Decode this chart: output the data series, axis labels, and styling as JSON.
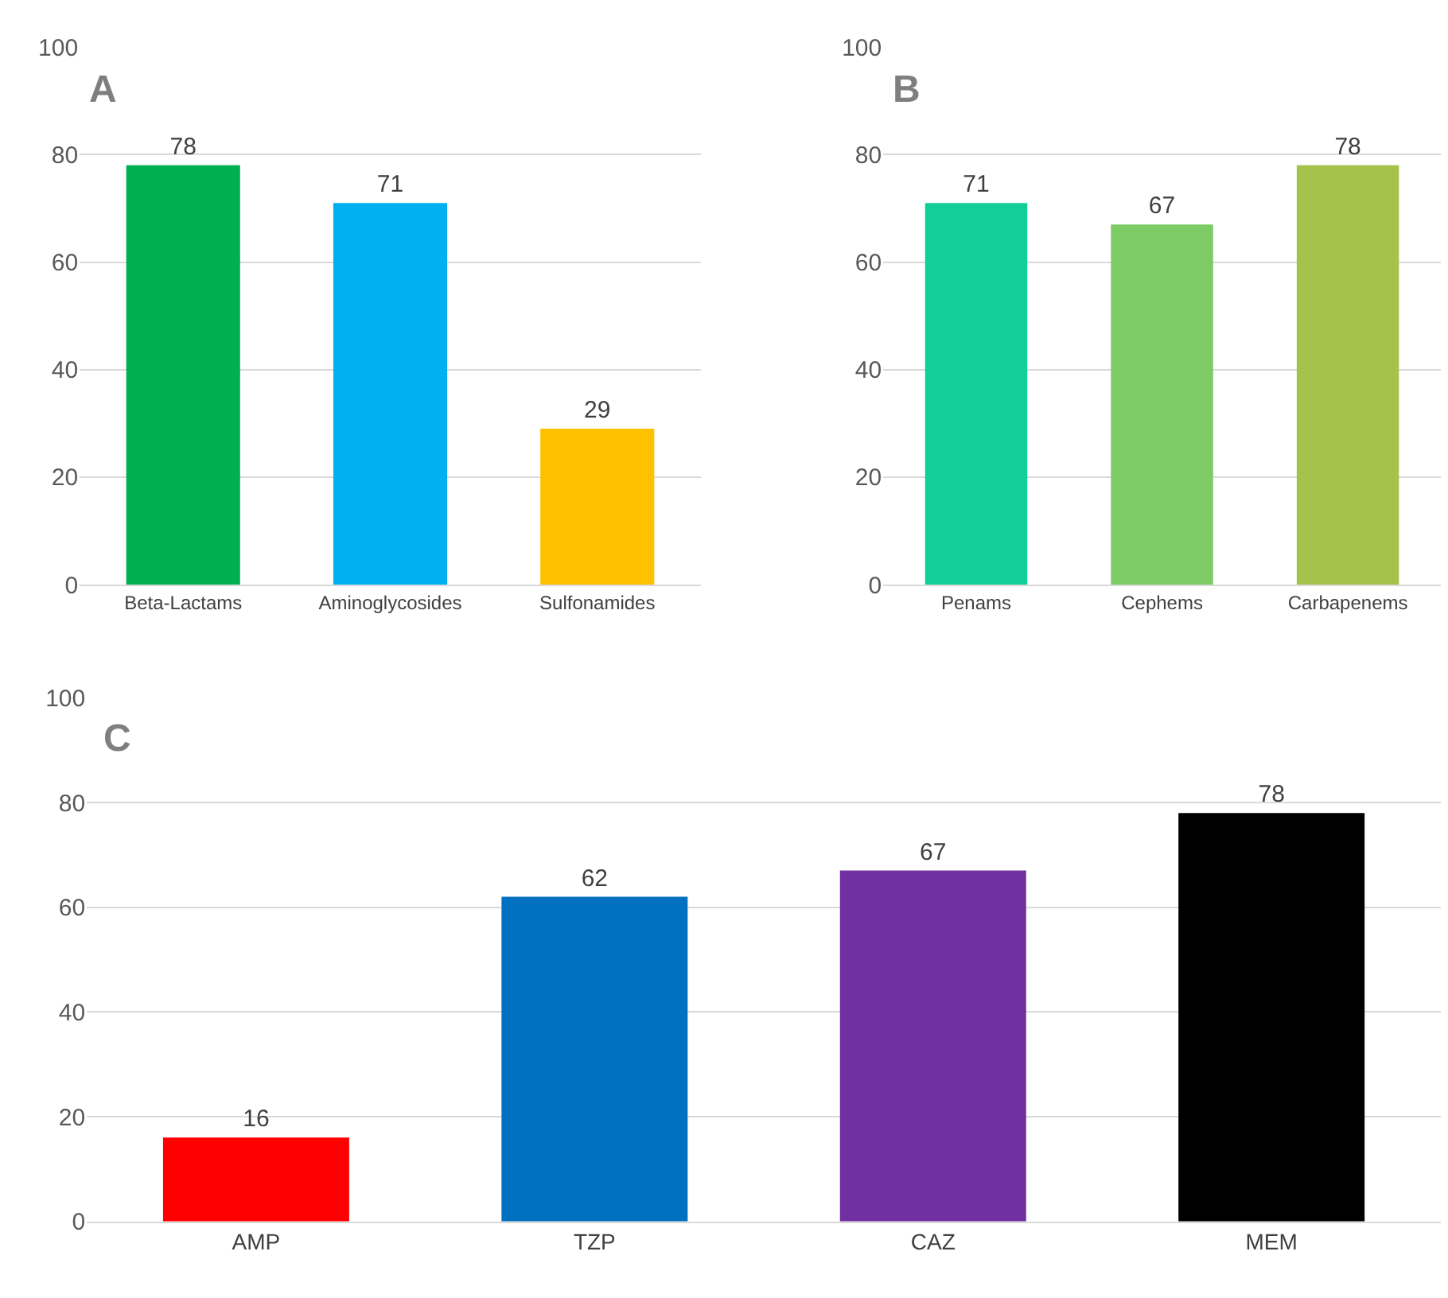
{
  "chart_data": [
    {
      "type": "bar",
      "title": "A",
      "categories": [
        "Beta-Lactams",
        "Aminoglycosides",
        "Sulfonamides"
      ],
      "values": [
        78,
        71,
        29
      ],
      "colors": [
        "#00b050",
        "#00b0f0",
        "#ffc000"
      ],
      "ylim": [
        0,
        100
      ],
      "yticks": [
        0,
        20,
        40,
        60,
        80,
        100
      ],
      "grid": "y",
      "data_labels": true
    },
    {
      "type": "bar",
      "title": "B",
      "categories": [
        "Penams",
        "Cephems",
        "Carbapenems"
      ],
      "values": [
        71,
        67,
        78
      ],
      "colors": [
        "#12cf9a",
        "#7ccb64",
        "#a5c24a"
      ],
      "ylim": [
        0,
        100
      ],
      "yticks": [
        0,
        20,
        40,
        60,
        80,
        100
      ],
      "grid": "y",
      "data_labels": true
    },
    {
      "type": "bar",
      "title": "C",
      "categories": [
        "AMP",
        "TZP",
        "CAZ",
        "MEM"
      ],
      "values": [
        16,
        62,
        67,
        78
      ],
      "colors": [
        "#ff0000",
        "#0070c0",
        "#7030a0",
        "#000000"
      ],
      "ylim": [
        0,
        100
      ],
      "yticks": [
        0,
        20,
        40,
        60,
        80,
        100
      ],
      "grid": "y",
      "data_labels": true
    }
  ]
}
